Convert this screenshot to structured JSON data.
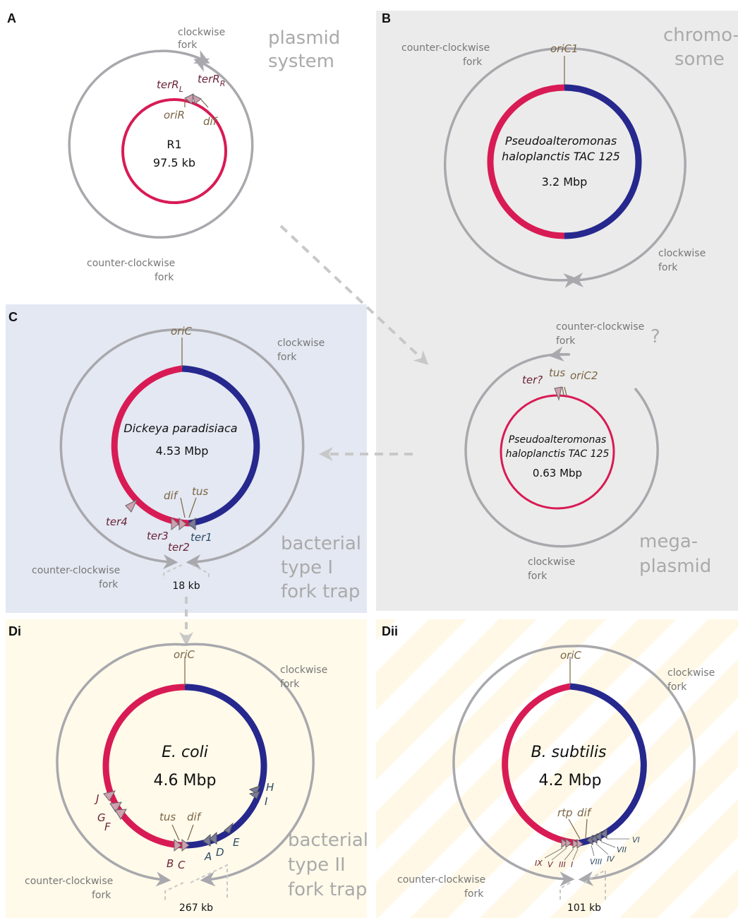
{
  "panels": {
    "A": {
      "tag": "A",
      "system": [
        "plasmid",
        "system"
      ],
      "cw": [
        "clockwise",
        "fork"
      ],
      "ccw": [
        "counter-clockwise",
        "fork"
      ],
      "name": "R1",
      "size": "97.5 kb",
      "terL": "terR",
      "terL_sub": "L",
      "terRR": "terR",
      "terRR_sub": "R",
      "ori": "oriR",
      "dif": "dif"
    },
    "B": {
      "tag": "B",
      "system": [
        "chromo-",
        "some"
      ],
      "ccw": [
        "counter-clockwise",
        "fork"
      ],
      "cw": [
        "clockwise",
        "fork"
      ],
      "ori": "oriC1",
      "org1": "Pseudoalteromonas",
      "org2": "haloplanctis TAC 125",
      "size": "3.2 Mbp"
    },
    "mega": {
      "ccw": [
        "counter-clockwise",
        "fork"
      ],
      "q": "?",
      "ter": "ter?",
      "tus": "tus",
      "ori": "oriC2",
      "org1": "Pseudoalteromonas",
      "org2": "haloplanctis TAC 125",
      "size": "0.63 Mbp",
      "cw": [
        "clockwise",
        "fork"
      ],
      "system": [
        "mega-",
        "plasmid"
      ]
    },
    "C": {
      "tag": "C",
      "ori": "oriC",
      "cw": [
        "clockwise",
        "fork"
      ],
      "org": "Dickeya paradisiaca",
      "size": "4.53 Mbp",
      "dif": "dif",
      "tus": "tus",
      "ter4": "ter4",
      "ter3": "ter3",
      "ter2": "ter2",
      "ter1": "ter1",
      "ccw": [
        "counter-clockwise",
        "fork"
      ],
      "dist": "18 kb",
      "system": [
        "bacterial",
        "type I",
        "fork trap"
      ]
    },
    "Di": {
      "tag": "Di",
      "ori": "oriC",
      "cw": [
        "clockwise",
        "fork"
      ],
      "org": "E. coli",
      "size": "4.6 Mbp",
      "J": "J",
      "G": "G",
      "F": "F",
      "H": "H",
      "I": "I",
      "tus": "tus",
      "dif": "dif",
      "E": "E",
      "A": "A",
      "D": "D",
      "B": "B",
      "C": "C",
      "ccw": [
        "counter-clockwise",
        "fork"
      ],
      "dist": "267 kb",
      "system": [
        "bacterial",
        "type II",
        "fork trap"
      ]
    },
    "Dii": {
      "tag": "Dii",
      "ori": "oriC",
      "cw": [
        "clockwise",
        "fork"
      ],
      "org": "B. subtilis",
      "size": "4.2 Mbp",
      "rtp": "rtp",
      "dif": "dif",
      "left": [
        "IX",
        "V",
        "III",
        "I"
      ],
      "right": [
        "VI",
        "VII",
        "IV",
        "VIII"
      ],
      "ccw": [
        "counter-clockwise",
        "fork"
      ],
      "dist": "101 kb"
    }
  },
  "colors": {
    "red": "#d81b55",
    "blue": "#26288e",
    "gray": "#a8a8ad",
    "bgB": "#ebebeb",
    "bgC": "#e3e8f2",
    "bgD": "#fffaea"
  }
}
